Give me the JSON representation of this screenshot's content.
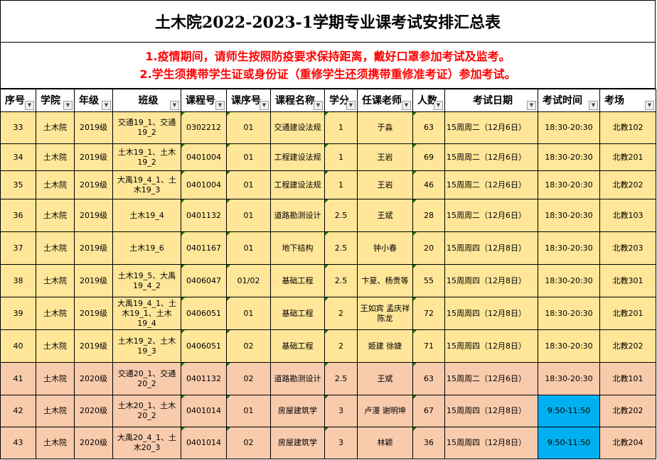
{
  "title": "土木院2022-2023-1学期专业课考试安排汇总表",
  "notices": [
    "1.疫情期间，请师生按照防疫要求保持距离，戴好口罩参加考试及监考。",
    "2.学生须携带学生证或身份证（重修学生还须携带重修准考证）参加考试。"
  ],
  "colors": {
    "notice": "#FF0000",
    "row_2019": "#FFE699",
    "row_2020": "#F8CBAD",
    "highlight": "#00B0F0"
  },
  "headers": [
    "序号",
    "学院",
    "年级",
    "班级",
    "课程号",
    "课序号",
    "课程名称",
    "学分",
    "任课老师",
    "人数",
    "考试日期",
    "考试时间",
    "考场"
  ],
  "rows": [
    [
      "33",
      "土木院",
      "2019级",
      "交通19_1、交通19_2",
      "0302212",
      "01",
      "交通建设法规",
      "1",
      "于淼",
      "63",
      "15周周二（12月6日）",
      "18:30-20:30",
      "北教102"
    ],
    [
      "34",
      "土木院",
      "2019级",
      "土木19_1、土木19_2",
      "0401004",
      "01",
      "工程建设法规",
      "1",
      "王岩",
      "69",
      "15周周二（12月6日）",
      "18:30-20:30",
      "北教201"
    ],
    [
      "35",
      "土木院",
      "2019级",
      "大禹19_4_1、土木19_3",
      "0401004",
      "01",
      "工程建设法规",
      "1",
      "王岩",
      "46",
      "15周周二（12月6日）",
      "18:30-20:30",
      "北教202"
    ],
    [
      "36",
      "土木院",
      "2019级",
      "土木19_4",
      "0401132",
      "01",
      "道路勘测设计",
      "2.5",
      "王斌",
      "28",
      "15周周二（12月6日）",
      "18:30-20:30",
      "北教103"
    ],
    [
      "37",
      "土木院",
      "2019级",
      "土木19_6",
      "0401167",
      "01",
      "地下结构",
      "2.5",
      "钟小春",
      "20",
      "15周周四（12月8日）",
      "18:30-20:30",
      "北教203"
    ],
    [
      "38",
      "土木院",
      "2019级",
      "土木19_5、大禹19_4_2",
      "0406047",
      "01/02",
      "基础工程",
      "2.5",
      "卞夏、杨贵等",
      "55",
      "15周周四（12月8日）",
      "18:30-20:30",
      "北教301"
    ],
    [
      "39",
      "土木院",
      "2019级",
      "大禹19_4_1、土木19_1、土木19_4",
      "0406051",
      "01",
      "基础工程",
      "2",
      "王如宾 孟庆祥 陈龙",
      "72",
      "15周周四（12月8日）",
      "18:30-20:30",
      "北教201"
    ],
    [
      "40",
      "土木院",
      "2019级",
      "土木19_2、土木19_3",
      "0406051",
      "02",
      "基础工程",
      "2",
      "姬建 徐婕",
      "71",
      "15周周四（12月8日）",
      "18:30-20:30",
      "北教202"
    ],
    [
      "41",
      "土木院",
      "2020级",
      "交通20_1、交通20_2",
      "0401132",
      "02",
      "道路勘测设计",
      "2.5",
      "王斌",
      "63",
      "15周周二（12月6日）",
      "18:30-20:30",
      "北教101"
    ],
    [
      "42",
      "土木院",
      "2020级",
      "土木20_1、土木20_2",
      "0401014",
      "01",
      "房屋建筑学",
      "3",
      "卢漫 谢明坤",
      "67",
      "15周周四（12月8日）",
      "9:50-11:50",
      "北教202"
    ],
    [
      "43",
      "土木院",
      "2020级",
      "大禹20_4_1、土木20_3",
      "0401014",
      "02",
      "房屋建筑学",
      "3",
      "林颖",
      "36",
      "15周周四（12月8日）",
      "9:50-11:50",
      "北教204"
    ]
  ]
}
